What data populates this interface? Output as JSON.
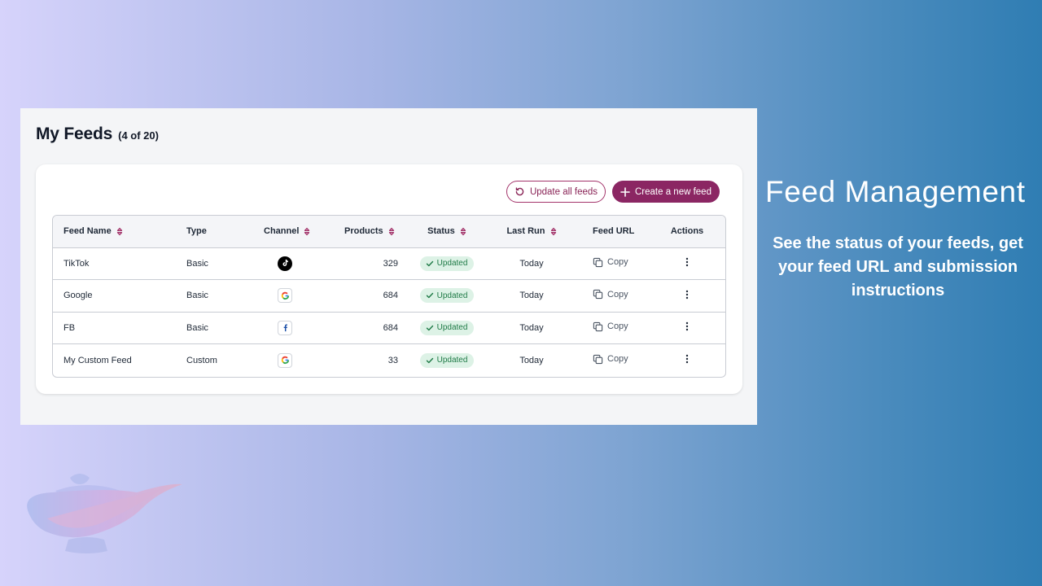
{
  "page": {
    "title": "My Feeds",
    "count": "(4 of 20)"
  },
  "toolbar": {
    "update_all_label": "Update all feeds",
    "create_label": "Create a new feed"
  },
  "table": {
    "columns": {
      "feed_name": "Feed Name",
      "type": "Type",
      "channel": "Channel",
      "products": "Products",
      "status": "Status",
      "last_run": "Last Run",
      "feed_url": "Feed URL",
      "actions": "Actions"
    },
    "rows": [
      {
        "name": "TikTok",
        "type": "Basic",
        "channel_icon": "tiktok-icon",
        "products": "329",
        "status": "Updated",
        "last_run": "Today",
        "url_label": "Copy"
      },
      {
        "name": "Google",
        "type": "Basic",
        "channel_icon": "google-icon",
        "products": "684",
        "status": "Updated",
        "last_run": "Today",
        "url_label": "Copy"
      },
      {
        "name": "FB",
        "type": "Basic",
        "channel_icon": "facebook-icon",
        "products": "684",
        "status": "Updated",
        "last_run": "Today",
        "url_label": "Copy"
      },
      {
        "name": "My Custom Feed",
        "type": "Custom",
        "channel_icon": "google-icon",
        "products": "33",
        "status": "Updated",
        "last_run": "Today",
        "url_label": "Copy"
      }
    ]
  },
  "promo": {
    "title": "Feed Management",
    "subtitle": "See the status of your feeds, get your feed URL and submission instructions"
  },
  "colors": {
    "accent": "#8b2663",
    "status_bg": "#ddf2e6",
    "status_text": "#1e7a46"
  }
}
